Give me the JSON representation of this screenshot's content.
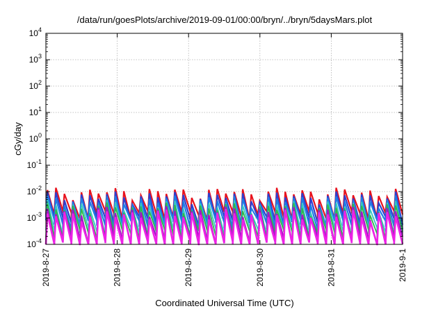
{
  "chart_data": {
    "type": "line",
    "title": "/data/run/goesPlots/archive/2019-09-01/00:00/bryn/../bryn/5daysMars.plot",
    "xlabel": "Coordinated Universal Time (UTC)",
    "ylabel": "cGy/day",
    "y_scale": "log",
    "ylim": [
      0.0001,
      10000
    ],
    "xlim": [
      "2019-08-27",
      "2019-09-01"
    ],
    "y_ticks": [
      {
        "base": "10",
        "exp": "-4"
      },
      {
        "base": "10",
        "exp": "-3"
      },
      {
        "base": "10",
        "exp": "-2"
      },
      {
        "base": "10",
        "exp": "-1"
      },
      {
        "base": "10",
        "exp": "0"
      },
      {
        "base": "10",
        "exp": "1"
      },
      {
        "base": "10",
        "exp": "2"
      },
      {
        "base": "10",
        "exp": "3"
      },
      {
        "base": "10",
        "exp": "4"
      }
    ],
    "x_ticks": [
      "2019-8-27",
      "2019-8-28",
      "2019-8-29",
      "2019-8-30",
      "2019-8-31",
      "2019-9-1"
    ],
    "grid": true,
    "sawtooth_cycles": 42,
    "series": [
      {
        "color": "#e8121d",
        "peak": 0.0095,
        "trough": 0.0013,
        "width": 2.2
      },
      {
        "color": "#2f3fcf",
        "peak": 0.0068,
        "trough": 0.0008,
        "width": 2.2
      },
      {
        "color": "#1e7de6",
        "peak": 0.0048,
        "trough": 0.0006,
        "width": 2.2
      },
      {
        "color": "#35c9c0",
        "peak": 0.0032,
        "trough": 0.00032,
        "width": 1.8
      },
      {
        "color": "#2fb84a",
        "peak": 0.0025,
        "trough": 0.00025,
        "width": 1.8
      },
      {
        "color": "#a017c4",
        "peak": 0.0018,
        "trough": 0.00014,
        "width": 2.2
      },
      {
        "color": "#ee22e6",
        "peak": 0.0014,
        "trough": 9e-05,
        "width": 2.6
      }
    ]
  }
}
